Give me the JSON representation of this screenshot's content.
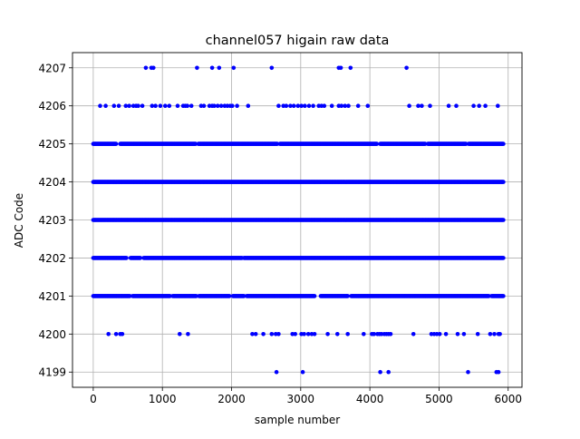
{
  "chart_data": {
    "type": "scatter",
    "title": "channel057 higain raw data",
    "xlabel": "sample number",
    "ylabel": "ADC Code",
    "xlim": [
      -300,
      6200
    ],
    "ylim": [
      4198.6,
      4207.4
    ],
    "xticks": [
      0,
      1000,
      2000,
      3000,
      4000,
      5000,
      6000
    ],
    "yticks": [
      4199,
      4200,
      4201,
      4202,
      4203,
      4204,
      4205,
      4206,
      4207
    ],
    "grid": true,
    "marker_color": "#0000ff",
    "series": [
      {
        "dense_rows": [
          {
            "y": 4205,
            "x_start": 0,
            "x_end": 5930,
            "gaps": [
              [
                330,
                390
              ],
              [
                1480,
                1520
              ],
              [
                2660,
                2700
              ],
              [
                4100,
                4150
              ],
              [
                4800,
                4840
              ],
              [
                5390,
                5430
              ]
            ]
          },
          {
            "y": 4204,
            "x_start": 0,
            "x_end": 5930,
            "gaps": []
          },
          {
            "y": 4203,
            "x_start": 0,
            "x_end": 5930,
            "gaps": []
          },
          {
            "y": 4202,
            "x_start": 0,
            "x_end": 5930,
            "gaps": [
              [
                480,
                540
              ],
              [
                680,
                730
              ],
              [
                2150,
                2180
              ]
            ]
          },
          {
            "y": 4201,
            "x_start": 0,
            "x_end": 5930,
            "gaps": [
              [
                530,
                570
              ],
              [
                1110,
                1150
              ],
              [
                1490,
                1530
              ],
              [
                1970,
                2020
              ],
              [
                2180,
                2220
              ],
              [
                3200,
                3290
              ],
              [
                3680,
                3730
              ],
              [
                5720,
                5760
              ]
            ]
          }
        ],
        "sparse_points": [
          {
            "y": 4207,
            "x": [
              760,
              840,
              870,
              1500,
              1720,
              1820,
              2030,
              2580,
              3550,
              3580,
              3720,
              4530
            ]
          },
          {
            "y": 4206,
            "x": [
              100,
              180,
              300,
              370,
              470,
              520,
              580,
              620,
              650,
              710,
              850,
              900,
              970,
              1040,
              1100,
              1220,
              1300,
              1330,
              1360,
              1420,
              1560,
              1600,
              1680,
              1720,
              1750,
              1800,
              1850,
              1900,
              1940,
              1980,
              2010,
              2080,
              2240,
              2680,
              2750,
              2790,
              2850,
              2900,
              2960,
              3010,
              3060,
              3120,
              3180,
              3260,
              3300,
              3340,
              3450,
              3550,
              3590,
              3640,
              3690,
              3830,
              3970,
              4570,
              4700,
              4750,
              4870,
              5140,
              5250,
              5500,
              5580,
              5670,
              5850
            ]
          },
          {
            "y": 4200,
            "x": [
              220,
              330,
              390,
              420,
              1250,
              1370,
              2300,
              2350,
              2460,
              2580,
              2640,
              2680,
              2880,
              2920,
              3010,
              3050,
              3110,
              3160,
              3200,
              3390,
              3530,
              3680,
              3910,
              4030,
              4060,
              4110,
              4140,
              4170,
              4210,
              4240,
              4270,
              4300,
              4630,
              4890,
              4930,
              4970,
              5010,
              5100,
              5270,
              5360,
              5560,
              5740,
              5800,
              5860,
              5880
            ]
          },
          {
            "y": 4199,
            "x": [
              2650,
              3030,
              4150,
              4270,
              5420,
              5830,
              5860
            ]
          }
        ]
      }
    ]
  }
}
